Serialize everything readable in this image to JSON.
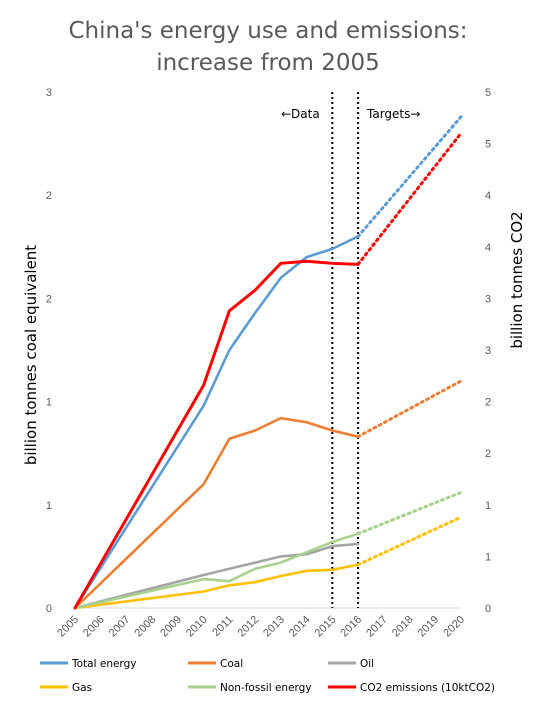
{
  "chart_data": {
    "type": "line",
    "title": [
      "China's energy use and emissions:",
      "increase from 2005"
    ],
    "ylabel_left": "billion tonnes coal equivalent",
    "ylabel_right": "billion tonnes CO2",
    "x": [
      "2005",
      "2006",
      "2007",
      "2008",
      "2009",
      "2010",
      "2011",
      "2012",
      "2013",
      "2014",
      "2015",
      "2016",
      "2017",
      "2018",
      "2019",
      "2020"
    ],
    "y_left_ticks": [
      "0",
      "1",
      "1",
      "2",
      "2",
      "3"
    ],
    "y_right_ticks": [
      "0",
      "1",
      "1",
      "2",
      "2",
      "3",
      "3",
      "4",
      "4",
      "5",
      "5"
    ],
    "y_left_lim": [
      0,
      2.5
    ],
    "y_right_lim": [
      0,
      5
    ],
    "grid": false,
    "legend_position": "bottom",
    "annotations": {
      "data": "←Data",
      "targets": "Targets→"
    },
    "divider_years": [
      "2015",
      "2016"
    ],
    "series": [
      {
        "name": "Total energy",
        "color": "#5B9BD5",
        "actual": [
          [
            2005,
            0
          ],
          [
            2010,
            0.98
          ],
          [
            2011,
            1.25
          ],
          [
            2012,
            1.43
          ],
          [
            2013,
            1.6
          ],
          [
            2014,
            1.7
          ],
          [
            2015,
            1.74
          ],
          [
            2016,
            1.8
          ]
        ],
        "target": [
          [
            2016,
            1.8
          ],
          [
            2020,
            2.38
          ]
        ]
      },
      {
        "name": "Coal",
        "color": "#ED7D31",
        "actual": [
          [
            2005,
            0
          ],
          [
            2010,
            0.6
          ],
          [
            2011,
            0.82
          ],
          [
            2012,
            0.86
          ],
          [
            2013,
            0.92
          ],
          [
            2014,
            0.9
          ],
          [
            2015,
            0.86
          ],
          [
            2016,
            0.83
          ]
        ],
        "target": [
          [
            2016,
            0.83
          ],
          [
            2020,
            1.1
          ]
        ]
      },
      {
        "name": "Oil",
        "color": "#A5A5A5",
        "actual": [
          [
            2005,
            0
          ],
          [
            2010,
            0.16
          ],
          [
            2011,
            0.19
          ],
          [
            2012,
            0.22
          ],
          [
            2013,
            0.25
          ],
          [
            2014,
            0.26
          ],
          [
            2015,
            0.3
          ],
          [
            2016,
            0.31
          ]
        ],
        "target": []
      },
      {
        "name": "Gas",
        "color": "#FFC000",
        "actual": [
          [
            2005,
            0
          ],
          [
            2010,
            0.08
          ],
          [
            2011,
            0.11
          ],
          [
            2012,
            0.125
          ],
          [
            2013,
            0.155
          ],
          [
            2014,
            0.18
          ],
          [
            2015,
            0.185
          ],
          [
            2016,
            0.21
          ]
        ],
        "target": [
          [
            2016,
            0.21
          ],
          [
            2020,
            0.44
          ]
        ]
      },
      {
        "name": "Non-fossil energy",
        "color": "#A9D18E",
        "actual": [
          [
            2005,
            0
          ],
          [
            2010,
            0.14
          ],
          [
            2011,
            0.13
          ],
          [
            2012,
            0.19
          ],
          [
            2013,
            0.22
          ],
          [
            2014,
            0.27
          ],
          [
            2015,
            0.32
          ],
          [
            2016,
            0.36
          ]
        ],
        "target": [
          [
            2016,
            0.36
          ],
          [
            2020,
            0.56
          ]
        ]
      },
      {
        "name": "CO2 emissions (10ktCO2)",
        "color": "#FF0000",
        "actual": [
          [
            2005,
            0
          ],
          [
            2010,
            2.16
          ],
          [
            2011,
            2.88
          ],
          [
            2012,
            3.08
          ],
          [
            2013,
            3.34
          ],
          [
            2014,
            3.36
          ],
          [
            2015,
            3.34
          ],
          [
            2016,
            3.33
          ]
        ],
        "target": [
          [
            2016,
            3.33
          ],
          [
            2020,
            4.6
          ]
        ]
      }
    ]
  }
}
